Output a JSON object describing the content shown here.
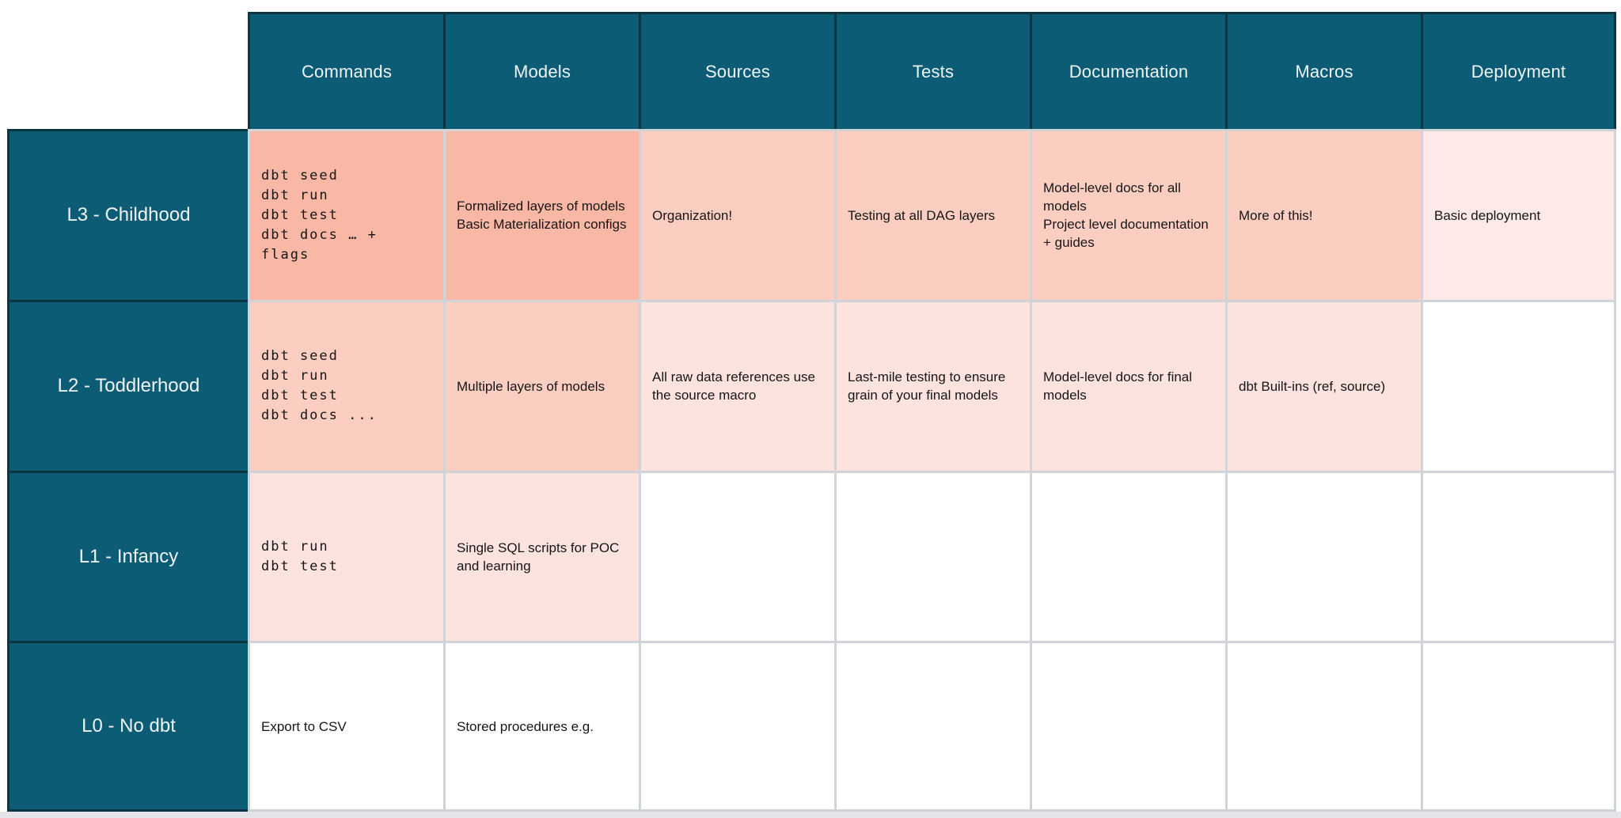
{
  "table": {
    "columns": [
      "Commands",
      "Models",
      "Sources",
      "Tests",
      "Documentation",
      "Macros",
      "Deployment"
    ],
    "rows": [
      {
        "label": "L3 - Childhood",
        "cells": [
          {
            "type": "code",
            "lines": [
              "dbt seed",
              "dbt run",
              "dbt test",
              "dbt docs … +",
              "flags"
            ],
            "shade": "s3"
          },
          {
            "type": "text",
            "lines": [
              "Formalized layers of models",
              "Basic Materialization configs"
            ],
            "shade": "s3"
          },
          {
            "type": "text",
            "lines": [
              "Organization!"
            ],
            "shade": "s2"
          },
          {
            "type": "text",
            "lines": [
              "Testing at all DAG layers"
            ],
            "shade": "s2"
          },
          {
            "type": "text",
            "lines": [
              "Model-level docs for all models",
              "Project level documentation + guides"
            ],
            "shade": "s2"
          },
          {
            "type": "text",
            "lines": [
              "More of this!"
            ],
            "shade": "s2"
          },
          {
            "type": "text",
            "lines": [
              "Basic deployment"
            ],
            "shade": "s0"
          }
        ]
      },
      {
        "label": "L2 - Toddlerhood",
        "cells": [
          {
            "type": "code",
            "lines": [
              "dbt seed",
              "dbt run",
              "dbt test",
              "dbt docs ..."
            ],
            "shade": "s2"
          },
          {
            "type": "text",
            "lines": [
              "Multiple layers of models"
            ],
            "shade": "s2"
          },
          {
            "type": "text",
            "lines": [
              "All raw data references use the source macro"
            ],
            "shade": "s1"
          },
          {
            "type": "text",
            "lines": [
              "Last-mile testing to ensure grain of your final models"
            ],
            "shade": "s1"
          },
          {
            "type": "text",
            "lines": [
              "Model-level docs for final models"
            ],
            "shade": "s1"
          },
          {
            "type": "text",
            "lines": [
              "dbt Built-ins (ref, source)"
            ],
            "shade": "s1"
          },
          {
            "type": "text",
            "lines": [],
            "shade": "white"
          }
        ]
      },
      {
        "label": "L1 - Infancy",
        "cells": [
          {
            "type": "code",
            "lines": [
              "dbt run",
              "dbt test"
            ],
            "shade": "s1"
          },
          {
            "type": "text",
            "lines": [
              "Single SQL scripts for POC and learning"
            ],
            "shade": "s1"
          },
          {
            "type": "text",
            "lines": [],
            "shade": "white"
          },
          {
            "type": "text",
            "lines": [],
            "shade": "white"
          },
          {
            "type": "text",
            "lines": [],
            "shade": "white"
          },
          {
            "type": "text",
            "lines": [],
            "shade": "white"
          },
          {
            "type": "text",
            "lines": [],
            "shade": "white"
          }
        ]
      },
      {
        "label": "L0 - No dbt",
        "cells": [
          {
            "type": "text",
            "lines": [
              "Export to CSV"
            ],
            "shade": "white"
          },
          {
            "type": "text",
            "lines": [
              "Stored procedures e.g."
            ],
            "shade": "white"
          },
          {
            "type": "text",
            "lines": [],
            "shade": "white"
          },
          {
            "type": "text",
            "lines": [],
            "shade": "white"
          },
          {
            "type": "text",
            "lines": [],
            "shade": "white"
          },
          {
            "type": "text",
            "lines": [],
            "shade": "white"
          },
          {
            "type": "text",
            "lines": [],
            "shade": "white"
          }
        ]
      }
    ]
  },
  "colors": {
    "header_teal": "#0c5c76",
    "dark_line": "#0d3645",
    "grid_line": "#d0d3d7",
    "header_text": "#eef3f5",
    "body_text": "#161616",
    "shade_s3": "#f9b7a5",
    "shade_s2": "#fbcec1",
    "shade_s1": "#fce3de",
    "shade_s0": "#fdeae7",
    "shade_white": "#ffffff",
    "bottom_strip": "#e3e5e8"
  }
}
